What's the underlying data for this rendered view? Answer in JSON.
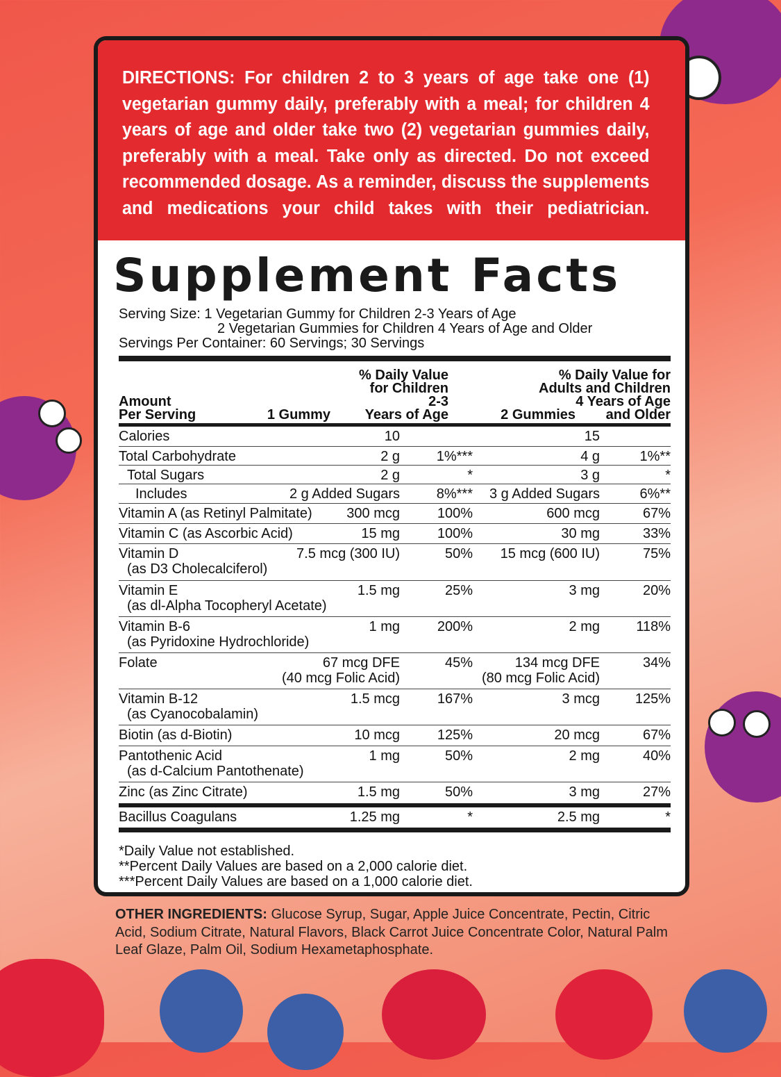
{
  "directions": {
    "lines": [
      "DIRECTIONS: For children 2 to 3 years of age take one (1)",
      "vegetarian gummy daily, preferably with a meal; for children 4",
      "years of age and older take two (2) vegetarian gummies daily,",
      "preferably with a meal. Take only as directed. Do not exceed",
      "recommended dosage. As a reminder, discuss the supplements",
      "and medications your child takes with their pediatrician."
    ]
  },
  "title": "Supplement Facts",
  "serving": {
    "line1": "Serving Size: 1 Vegetarian Gummy for Children 2-3 Years of Age",
    "line2": "2 Vegetarian Gummies for Children 4 Years of Age and Older",
    "line3": "Servings Per Container: 60 Servings; 30 Servings"
  },
  "header": {
    "amount": "Amount",
    "per": "Per Serving",
    "c1": "1 Gummy",
    "c2a": "% Daily Value",
    "c2b": "for Children",
    "c2c": "2-3",
    "c2d": "Years of Age",
    "c3": "2 Gummies",
    "c4a": "% Daily Value for",
    "c4b": "Adults and Children",
    "c4c": "4 Years of Age",
    "c4d": "and Older"
  },
  "rows": [
    {
      "name": "Calories",
      "name2": "",
      "c1": "10",
      "c1b": "",
      "c2": "",
      "c3": "15",
      "c3b": "",
      "c4": ""
    },
    {
      "name": "Total Carbohydrate",
      "name2": "",
      "c1": "2 g",
      "c1b": "",
      "c2": "1%***",
      "c3": "4 g",
      "c3b": "",
      "c4": "1%**"
    },
    {
      "name": "Total Sugars",
      "name2": "",
      "c1": "2 g",
      "c1b": "",
      "c2": "*",
      "c3": "3 g",
      "c3b": "",
      "c4": "*"
    },
    {
      "name": "Includes",
      "name2": "",
      "c1": "2 g Added Sugars",
      "c1b": "",
      "c2": "8%***",
      "c3": "3 g Added Sugars",
      "c3b": "",
      "c4": "6%**"
    },
    {
      "name": "Vitamin A (as Retinyl Palmitate)",
      "name2": "",
      "c1": "300 mcg",
      "c1b": "",
      "c2": "100%",
      "c3": "600 mcg",
      "c3b": "",
      "c4": "67%"
    },
    {
      "name": "Vitamin C (as Ascorbic Acid)",
      "name2": "",
      "c1": "15 mg",
      "c1b": "",
      "c2": "100%",
      "c3": "30 mg",
      "c3b": "",
      "c4": "33%"
    },
    {
      "name": "Vitamin D",
      "name2": "(as D3 Cholecalciferol)",
      "c1": "7.5 mcg (300 IU)",
      "c1b": "",
      "c2": "50%",
      "c3": "15 mcg (600 IU)",
      "c3b": "",
      "c4": "75%"
    },
    {
      "name": "Vitamin E",
      "name2": "(as dl-Alpha Tocopheryl Acetate)",
      "c1": "1.5 mg",
      "c1b": "",
      "c2": "25%",
      "c3": "3 mg",
      "c3b": "",
      "c4": "20%"
    },
    {
      "name": "Vitamin B-6",
      "name2": "(as Pyridoxine Hydrochloride)",
      "c1": "1 mg",
      "c1b": "",
      "c2": "200%",
      "c3": "2 mg",
      "c3b": "",
      "c4": "118%"
    },
    {
      "name": "Folate",
      "name2": "",
      "c1": "67 mcg DFE",
      "c1b": "(40 mcg Folic Acid)",
      "c2": "45%",
      "c3": "134 mcg DFE",
      "c3b": "(80 mcg Folic Acid)",
      "c4": "34%"
    },
    {
      "name": "Vitamin B-12",
      "name2": "(as Cyanocobalamin)",
      "c1": "1.5 mcg",
      "c1b": "",
      "c2": "167%",
      "c3": "3 mcg",
      "c3b": "",
      "c4": "125%"
    },
    {
      "name": "Biotin (as d-Biotin)",
      "name2": "",
      "c1": "10 mcg",
      "c1b": "",
      "c2": "125%",
      "c3": "20 mcg",
      "c3b": "",
      "c4": "67%"
    },
    {
      "name": "Pantothenic Acid",
      "name2": "(as d-Calcium Pantothenate)",
      "c1": "1 mg",
      "c1b": "",
      "c2": "50%",
      "c3": "2 mg",
      "c3b": "",
      "c4": "40%"
    },
    {
      "name": "Zinc (as Zinc Citrate)",
      "name2": "",
      "c1": "1.5 mg",
      "c1b": "",
      "c2": "50%",
      "c3": "3 mg",
      "c3b": "",
      "c4": "27%"
    },
    {
      "name": "Bacillus Coagulans",
      "name2": "",
      "c1": "1.25 mg",
      "c1b": "",
      "c2": "*",
      "c3": "2.5 mg",
      "c3b": "",
      "c4": "*"
    }
  ],
  "footnotes": [
    "*Daily Value not established.",
    "**Percent Daily Values are based on a 2,000 calorie diet.",
    "***Percent Daily Values are based on a 1,000 calorie diet."
  ],
  "other": {
    "label": "OTHER INGREDIENTS:",
    "text": " Glucose Syrup, Sugar, Apple Juice Concentrate, Pectin, Citric Acid, Sodium Citrate, Natural Flavors, Black Carrot Juice Concentrate Color, Natural Palm Leaf Glaze, Palm Oil, Sodium Hexametaphosphate."
  },
  "colors": {
    "directions_bg": "#e32a2e",
    "monster": "#8e2a8c",
    "blueberry": "#3c5fa8",
    "raspberry": "#e0223a"
  }
}
